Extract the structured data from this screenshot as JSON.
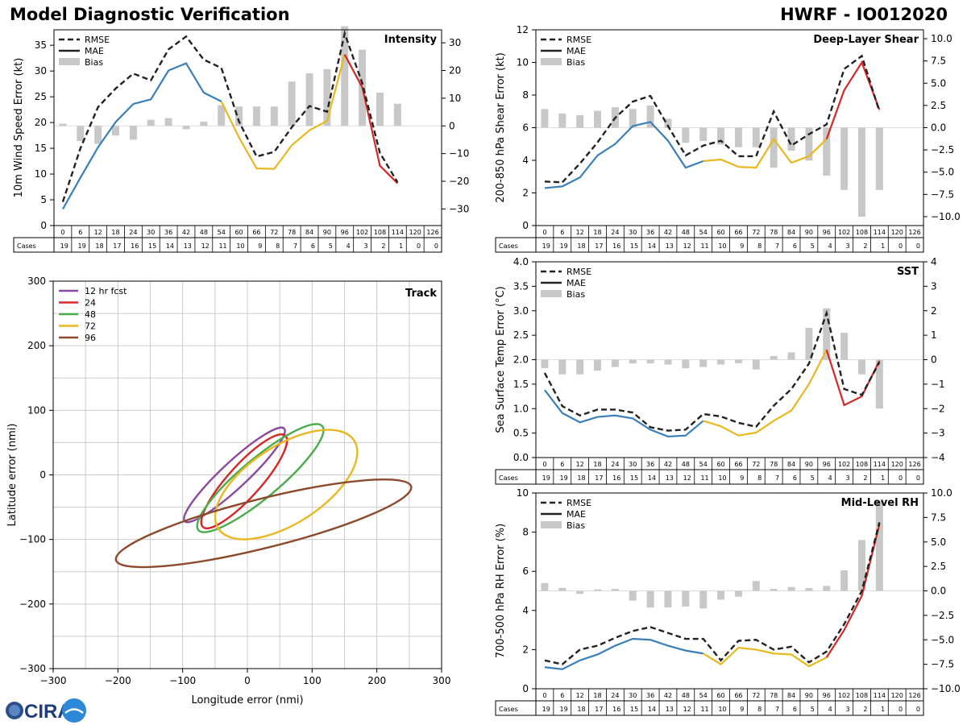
{
  "header": {
    "left_title": "Model Diagnostic Verification",
    "right_title": "HWRF - IO012020"
  },
  "logo": {
    "text": "CIRA"
  },
  "table": {
    "hours": [
      "0",
      "6",
      "12",
      "18",
      "24",
      "30",
      "36",
      "42",
      "48",
      "54",
      "60",
      "66",
      "72",
      "78",
      "84",
      "90",
      "96",
      "102",
      "108",
      "114",
      "120",
      "126"
    ],
    "cases_label": "Cases",
    "cases": [
      "19",
      "19",
      "18",
      "17",
      "16",
      "15",
      "14",
      "13",
      "12",
      "11",
      "10",
      "9",
      "8",
      "7",
      "6",
      "5",
      "4",
      "3",
      "2",
      "1",
      "0",
      "0"
    ]
  },
  "legend": {
    "rmse": "RMSE",
    "mae": "MAE",
    "bias": "Bias"
  },
  "colors": {
    "rmse": "#222222",
    "mae_early": "#3a7fb8",
    "mae_mid": "#e8b820",
    "mae_late": "#d62728",
    "bias": "#c8c8c8",
    "grid": "#cccccc"
  },
  "chart_data": [
    {
      "id": "intensity",
      "type": "line",
      "title": "Intensity",
      "ylabel": "10m Wind Speed Error (kt)",
      "ylim": [
        0,
        38
      ],
      "yticks": [
        "0",
        "5",
        "10",
        "15",
        "20",
        "25",
        "30",
        "35"
      ],
      "y2lim": [
        -36,
        34.7
      ],
      "y2ticks": [
        "−30",
        "−20",
        "−10",
        "0",
        "10",
        "20",
        "30"
      ],
      "rmse": [
        4.6,
        15,
        23,
        26.6,
        29.5,
        28.2,
        34.2,
        36.7,
        32.2,
        30.6,
        20.2,
        13.4,
        14.3,
        19.1,
        23.2,
        22.1,
        37.3,
        27.6,
        14.1,
        8.4
      ],
      "mae": [
        3.2,
        9.3,
        15.2,
        20.1,
        23.6,
        24.5,
        30.1,
        31.5,
        25.8,
        24.1,
        17.1,
        11.1,
        11.0,
        15.6,
        18.5,
        20.3,
        33.2,
        26.8,
        11.6,
        8.2
      ],
      "bias": [
        0.8,
        -5.5,
        -6.5,
        -3.5,
        -5,
        2.2,
        2.8,
        -1.2,
        1.5,
        7.5,
        7,
        7,
        7,
        16,
        19,
        20.5,
        36,
        27.5,
        12,
        8,
        0,
        0
      ]
    },
    {
      "id": "shear",
      "type": "line",
      "title": "Deep-Layer Shear",
      "ylabel": "200-850 hPa Shear Error (kt)",
      "ylim": [
        0,
        12
      ],
      "yticks": [
        "0",
        "2",
        "4",
        "6",
        "8",
        "10",
        "12"
      ],
      "y2lim": [
        -11,
        11
      ],
      "y2ticks": [
        "−10.0",
        "−7.5",
        "−5.0",
        "−2.5",
        "0.0",
        "2.5",
        "5.0",
        "7.5",
        "10.0"
      ],
      "rmse": [
        2.7,
        2.65,
        3.8,
        5.1,
        6.6,
        7.6,
        7.95,
        6.1,
        4.3,
        4.9,
        5.2,
        4.25,
        4.25,
        7.0,
        4.9,
        5.6,
        6.2,
        9.6,
        10.4,
        7.0
      ],
      "mae": [
        2.3,
        2.4,
        2.95,
        4.3,
        5.0,
        6.1,
        6.35,
        5.2,
        3.55,
        3.95,
        4.05,
        3.6,
        3.55,
        5.3,
        3.85,
        4.25,
        5.3,
        8.3,
        10.0,
        7.1
      ],
      "bias": [
        2.1,
        1.6,
        1.4,
        1.9,
        2.3,
        2.1,
        2.5,
        1.0,
        -1.7,
        -1.5,
        -1.9,
        -2.2,
        -2.2,
        -4.5,
        -2.6,
        -3.7,
        -5.4,
        -7,
        -10,
        -7,
        0,
        0
      ]
    },
    {
      "id": "sst",
      "type": "line",
      "title": "SST",
      "ylabel": "Sea Surface Temp Error (°C)",
      "ylim": [
        0,
        4
      ],
      "yticks": [
        "0.0",
        "0.5",
        "1.0",
        "1.5",
        "2.0",
        "2.5",
        "3.0",
        "3.5",
        "4.0"
      ],
      "y2lim": [
        -4,
        4
      ],
      "y2ticks": [
        "−4",
        "−3",
        "−2",
        "−1",
        "0",
        "1",
        "2",
        "3",
        "4"
      ],
      "rmse": [
        1.73,
        1.05,
        0.86,
        0.98,
        0.98,
        0.92,
        0.62,
        0.55,
        0.57,
        0.89,
        0.84,
        0.71,
        0.63,
        1.06,
        1.4,
        1.92,
        2.95,
        1.4,
        1.28,
        1.95
      ],
      "mae": [
        1.38,
        0.91,
        0.72,
        0.83,
        0.86,
        0.8,
        0.57,
        0.43,
        0.45,
        0.75,
        0.64,
        0.45,
        0.51,
        0.75,
        0.96,
        1.5,
        2.2,
        1.07,
        1.25,
        1.98
      ],
      "bias": [
        -0.35,
        -0.6,
        -0.6,
        -0.45,
        -0.3,
        -0.15,
        -0.15,
        -0.2,
        -0.35,
        -0.3,
        -0.2,
        -0.15,
        -0.4,
        0.15,
        0.3,
        1.3,
        2.1,
        1.1,
        -0.6,
        -2.0,
        0,
        0
      ]
    },
    {
      "id": "rh",
      "type": "line",
      "title": "Mid-Level RH",
      "ylabel": "700-500 hPa RH Error (%)",
      "ylim": [
        0,
        10
      ],
      "yticks": [
        "0",
        "2",
        "4",
        "6",
        "8",
        "10"
      ],
      "y2lim": [
        -10,
        10
      ],
      "y2ticks": [
        "−10.0",
        "−7.5",
        "−5.0",
        "−2.5",
        "0.0",
        "2.5",
        "5.0",
        "7.5",
        "10.0"
      ],
      "rmse": [
        1.45,
        1.25,
        2.0,
        2.2,
        2.6,
        2.95,
        3.15,
        2.85,
        2.55,
        2.55,
        1.45,
        2.45,
        2.5,
        2.0,
        2.15,
        1.35,
        1.9,
        3.3,
        5.0,
        8.5
      ],
      "mae": [
        1.1,
        1.0,
        1.45,
        1.75,
        2.2,
        2.55,
        2.5,
        2.2,
        1.95,
        1.8,
        1.25,
        2.1,
        2.0,
        1.8,
        1.75,
        1.15,
        1.6,
        3.0,
        4.75,
        8.4
      ],
      "bias": [
        0.8,
        0.3,
        -0.3,
        0.15,
        0.2,
        -1.0,
        -1.7,
        -1.7,
        -1.6,
        -1.8,
        -0.9,
        -0.6,
        1.0,
        0.2,
        0.4,
        0.3,
        0.5,
        2.1,
        5.2,
        9.2,
        0,
        0
      ]
    },
    {
      "id": "track",
      "type": "ellipse",
      "title": "Track",
      "xlabel": "Longitude error (nmi)",
      "ylabel": "Latitude error (nmi)",
      "xlim": [
        -300,
        300
      ],
      "ylim": [
        -300,
        300
      ],
      "xticks": [
        "−300",
        "−200",
        "−100",
        "0",
        "100",
        "200",
        "300"
      ],
      "yticks": [
        "−300",
        "−200",
        "−100",
        "0",
        "100",
        "200",
        "300"
      ],
      "series": [
        {
          "name": "12 hr fcst",
          "color": "#8b4aa0",
          "cx": -20,
          "cy": 0,
          "a": 105,
          "b": 20,
          "angle": 43
        },
        {
          "name": "24",
          "color": "#d62728",
          "cx": -5,
          "cy": -10,
          "a": 95,
          "b": 25,
          "angle": 48
        },
        {
          "name": "48",
          "color": "#4cac4c",
          "cx": 20,
          "cy": -5,
          "a": 125,
          "b": 30,
          "angle": 40
        },
        {
          "name": "72",
          "color": "#e8b820",
          "cx": 60,
          "cy": -15,
          "a": 125,
          "b": 60,
          "angle": 33
        },
        {
          "name": "96",
          "color": "#8b4a2b",
          "cx": 25,
          "cy": -75,
          "a": 235,
          "b": 38,
          "angle": 14
        }
      ]
    }
  ]
}
